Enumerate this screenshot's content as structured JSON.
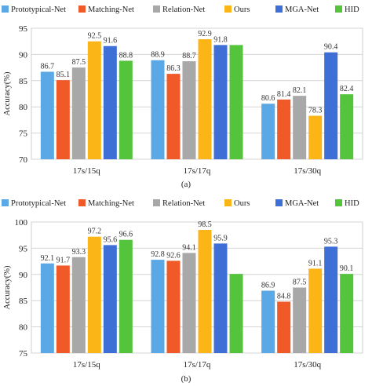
{
  "chart_data": [
    {
      "type": "bar",
      "caption": "(a)",
      "ylabel": "Accuracy(%)",
      "ylim": [
        70,
        95
      ],
      "yticks": [
        70,
        75,
        80,
        85,
        90,
        95
      ],
      "grid": "horizontal",
      "legend_position": "top",
      "categories": [
        "17s/15q",
        "17s/17q",
        "17s/30q"
      ],
      "series": [
        {
          "name": "Prototypical-Net",
          "color": "#5aa9e6",
          "values": [
            86.7,
            88.9,
            80.6
          ]
        },
        {
          "name": "Matching-Net",
          "color": "#ef5a28",
          "values": [
            85.1,
            86.3,
            81.4
          ]
        },
        {
          "name": "Relation-Net",
          "color": "#a8a8a8",
          "values": [
            87.5,
            88.7,
            82.1
          ]
        },
        {
          "name": "Ours",
          "color": "#fbb517",
          "values": [
            92.5,
            92.9,
            78.3
          ]
        },
        {
          "name": "MGA-Net",
          "color": "#3e6fd6",
          "values": [
            91.6,
            91.8,
            90.4
          ]
        },
        {
          "name": "HID",
          "color": "#55c43d",
          "values": [
            88.8,
            91.8,
            82.4
          ]
        }
      ],
      "labels": [
        [
          "86.7",
          "88.9",
          "80.6"
        ],
        [
          "85.1",
          "86.3",
          "81.4"
        ],
        [
          "87.5",
          "88.7",
          "82.1"
        ],
        [
          "92.5",
          "92.9",
          "78.3"
        ],
        [
          "91.6",
          "91.8",
          "90.4"
        ],
        [
          "88.8",
          "",
          "82.4"
        ]
      ]
    },
    {
      "type": "bar",
      "caption": "(b)",
      "ylabel": "Accuracy(%)",
      "ylim": [
        75,
        100
      ],
      "yticks": [
        75,
        80,
        85,
        90,
        95,
        100
      ],
      "grid": "horizontal",
      "legend_position": "top",
      "categories": [
        "17s/15q",
        "17s/17q",
        "17s/30q"
      ],
      "series": [
        {
          "name": "Prototypical-Net",
          "color": "#5aa9e6",
          "values": [
            92.1,
            92.8,
            86.9
          ]
        },
        {
          "name": "Matching-Net",
          "color": "#ef5a28",
          "values": [
            91.7,
            92.6,
            84.8
          ]
        },
        {
          "name": "Relation-Net",
          "color": "#a8a8a8",
          "values": [
            93.3,
            94.1,
            87.5
          ]
        },
        {
          "name": "Ours",
          "color": "#fbb517",
          "values": [
            97.2,
            98.5,
            91.1
          ]
        },
        {
          "name": "MGA-Net",
          "color": "#3e6fd6",
          "values": [
            95.6,
            95.9,
            95.3
          ]
        },
        {
          "name": "HID",
          "color": "#55c43d",
          "values": [
            96.6,
            90.1,
            90.1
          ]
        }
      ],
      "labels": [
        [
          "92.1",
          "92.8",
          "86.9"
        ],
        [
          "91.7",
          "92.6",
          "84.8"
        ],
        [
          "93.3",
          "94.1",
          "87.5"
        ],
        [
          "97.2",
          "98.5",
          "91.1"
        ],
        [
          "95.6",
          "95.9",
          "95.3"
        ],
        [
          "96.6",
          "",
          "90.1"
        ]
      ]
    }
  ]
}
